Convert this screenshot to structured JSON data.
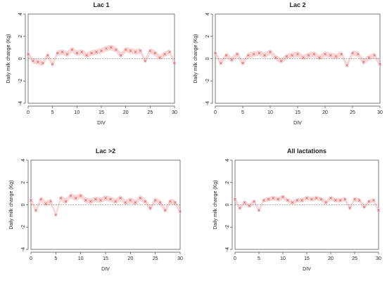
{
  "chart_data": [
    {
      "type": "line",
      "title": "Lac 1",
      "xlabel": "DIV",
      "ylabel": "Daily milk change (Kg)",
      "xlim": [
        0,
        30
      ],
      "ylim": [
        -4,
        4
      ],
      "xticks": [
        0,
        5,
        10,
        15,
        20,
        25,
        30
      ],
      "yticks": [
        -4,
        -2,
        0,
        2,
        4
      ],
      "reference_line": 0,
      "series": [
        {
          "x": [
            0,
            1,
            2,
            3,
            4,
            5,
            6,
            7,
            8,
            9,
            10,
            11,
            12,
            13,
            14,
            15,
            16,
            17,
            18,
            19,
            20,
            21,
            22,
            23,
            24,
            25,
            26,
            27,
            28,
            29,
            30
          ],
          "y": [
            0.4,
            -0.2,
            -0.3,
            -0.4,
            0.3,
            -0.5,
            0.5,
            0.6,
            0.4,
            0.8,
            0.5,
            0.6,
            0.3,
            0.5,
            0.6,
            0.7,
            0.9,
            1.0,
            0.8,
            0.3,
            0.8,
            0.7,
            0.6,
            0.7,
            -0.2,
            0.7,
            0.5,
            0.1,
            0.4,
            0.6,
            -0.4
          ],
          "ci": 0.25
        }
      ]
    },
    {
      "type": "line",
      "title": "Lac 2",
      "xlabel": "DIV",
      "ylabel": "Daily milk change (Kg)",
      "xlim": [
        0,
        30
      ],
      "ylim": [
        -4,
        4
      ],
      "xticks": [
        0,
        5,
        10,
        15,
        20,
        25,
        30
      ],
      "yticks": [
        -4,
        -2,
        0,
        2,
        4
      ],
      "reference_line": 0,
      "series": [
        {
          "x": [
            0,
            1,
            2,
            3,
            4,
            5,
            6,
            7,
            8,
            9,
            10,
            11,
            12,
            13,
            14,
            15,
            16,
            17,
            18,
            19,
            20,
            21,
            22,
            23,
            24,
            25,
            26,
            27,
            28,
            29,
            30
          ],
          "y": [
            0.5,
            -0.4,
            0.3,
            -0.1,
            0.4,
            -0.4,
            0.3,
            0.4,
            0.5,
            0.3,
            0.6,
            0.1,
            -0.2,
            0.2,
            0.3,
            0.4,
            0.1,
            0.3,
            0.4,
            0.1,
            0.4,
            0.3,
            0.2,
            0.4,
            -0.6,
            0.5,
            0.4,
            -0.3,
            0.1,
            0.3,
            -0.5
          ],
          "ci": 0.25
        }
      ]
    },
    {
      "type": "line",
      "title": "Lac >2",
      "xlabel": "DIV",
      "ylabel": "Daily milk change (Kg)",
      "xlim": [
        0,
        30
      ],
      "ylim": [
        -4,
        4
      ],
      "xticks": [
        0,
        5,
        10,
        15,
        20,
        25,
        30
      ],
      "yticks": [
        -4,
        -2,
        0,
        2,
        4
      ],
      "reference_line": 0,
      "series": [
        {
          "x": [
            0,
            1,
            2,
            3,
            4,
            5,
            6,
            7,
            8,
            9,
            10,
            11,
            12,
            13,
            14,
            15,
            16,
            17,
            18,
            19,
            20,
            21,
            22,
            23,
            24,
            25,
            26,
            27,
            28,
            29,
            30
          ],
          "y": [
            0.4,
            -0.5,
            0.5,
            0.1,
            0.3,
            -0.9,
            0.6,
            0.3,
            0.8,
            0.6,
            0.8,
            0.4,
            0.3,
            0.5,
            0.4,
            0.6,
            0.5,
            0.3,
            0.6,
            0.2,
            0.4,
            0.2,
            0.6,
            0.3,
            -0.3,
            0.4,
            0.2,
            -0.5,
            0.3,
            0.2,
            -0.6
          ],
          "ci": 0.25
        }
      ]
    },
    {
      "type": "line",
      "title": "All lactations",
      "xlabel": "DIV",
      "ylabel": "Daily milk change (Kg)",
      "xlim": [
        0,
        30
      ],
      "ylim": [
        -4,
        4
      ],
      "xticks": [
        0,
        5,
        10,
        15,
        20,
        25,
        30
      ],
      "yticks": [
        -4,
        -2,
        0,
        2,
        4
      ],
      "reference_line": 0,
      "series": [
        {
          "x": [
            0,
            1,
            2,
            3,
            4,
            5,
            6,
            7,
            8,
            9,
            10,
            11,
            12,
            13,
            14,
            15,
            16,
            17,
            18,
            19,
            20,
            21,
            22,
            23,
            24,
            25,
            26,
            27,
            28,
            29,
            30
          ],
          "y": [
            0.5,
            -0.3,
            0.2,
            -0.1,
            0.3,
            -0.5,
            0.4,
            0.5,
            0.6,
            0.5,
            0.7,
            0.4,
            0.2,
            0.4,
            0.4,
            0.6,
            0.5,
            0.6,
            0.5,
            0.2,
            0.6,
            0.4,
            0.4,
            0.5,
            -0.3,
            0.5,
            0.4,
            -0.2,
            0.3,
            0.4,
            -0.5
          ],
          "ci": 0.2
        }
      ]
    }
  ]
}
